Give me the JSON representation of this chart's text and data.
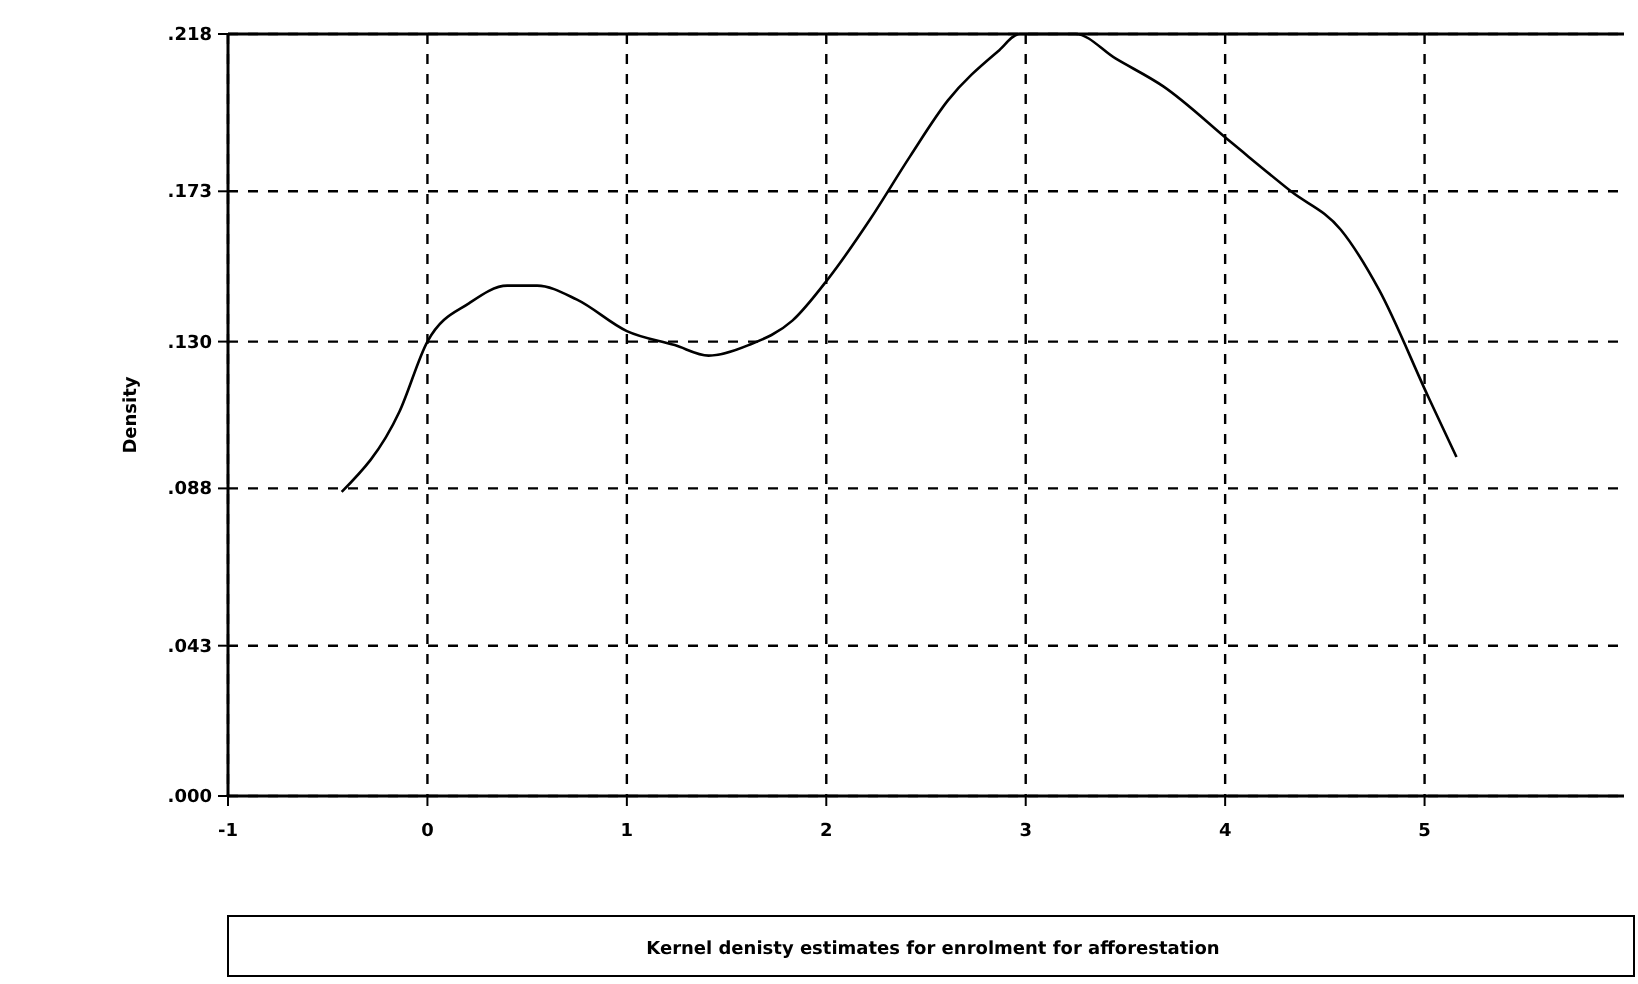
{
  "chart_data": {
    "type": "line",
    "title": "Kernel denisty estimates for enrolment for afforestation",
    "ylabel": "Density",
    "xlim": [
      -1,
      6
    ],
    "xticks": [
      -1,
      0,
      1,
      2,
      3,
      4,
      5
    ],
    "ylim": [
      0,
      0.218
    ],
    "yticks": [
      {
        "value": 0,
        "label": ".000"
      },
      {
        "value": 0.043,
        "label": ".043"
      },
      {
        "value": 0.088,
        "label": ".088"
      },
      {
        "value": 0.13,
        "label": ".130"
      },
      {
        "value": 0.173,
        "label": ".173"
      },
      {
        "value": 0.218,
        "label": ".218"
      }
    ],
    "grid": true,
    "line_style": "solid",
    "marker": "none",
    "series": [
      {
        "color": "#000000",
        "x": [
          -0.43,
          -0.14,
          0,
          0.21,
          0.4,
          0.55,
          0.75,
          1,
          1.24,
          1.41,
          1.61,
          1.83,
          2.01,
          2.22,
          2.42,
          2.61,
          2.86,
          2.97,
          3.25,
          3.45,
          3.69,
          4.03,
          4.33,
          4.58,
          4.77,
          5.02,
          5.16
        ],
        "values": [
          0.087,
          0.11,
          0.13,
          0.141,
          0.146,
          0.146,
          0.142,
          0.133,
          0.129,
          0.126,
          0.129,
          0.136,
          0.148,
          0.165,
          0.183,
          0.199,
          0.213,
          0.218,
          0.218,
          0.211,
          0.203,
          0.187,
          0.173,
          0.162,
          0.145,
          0.114,
          0.097
        ]
      }
    ]
  }
}
